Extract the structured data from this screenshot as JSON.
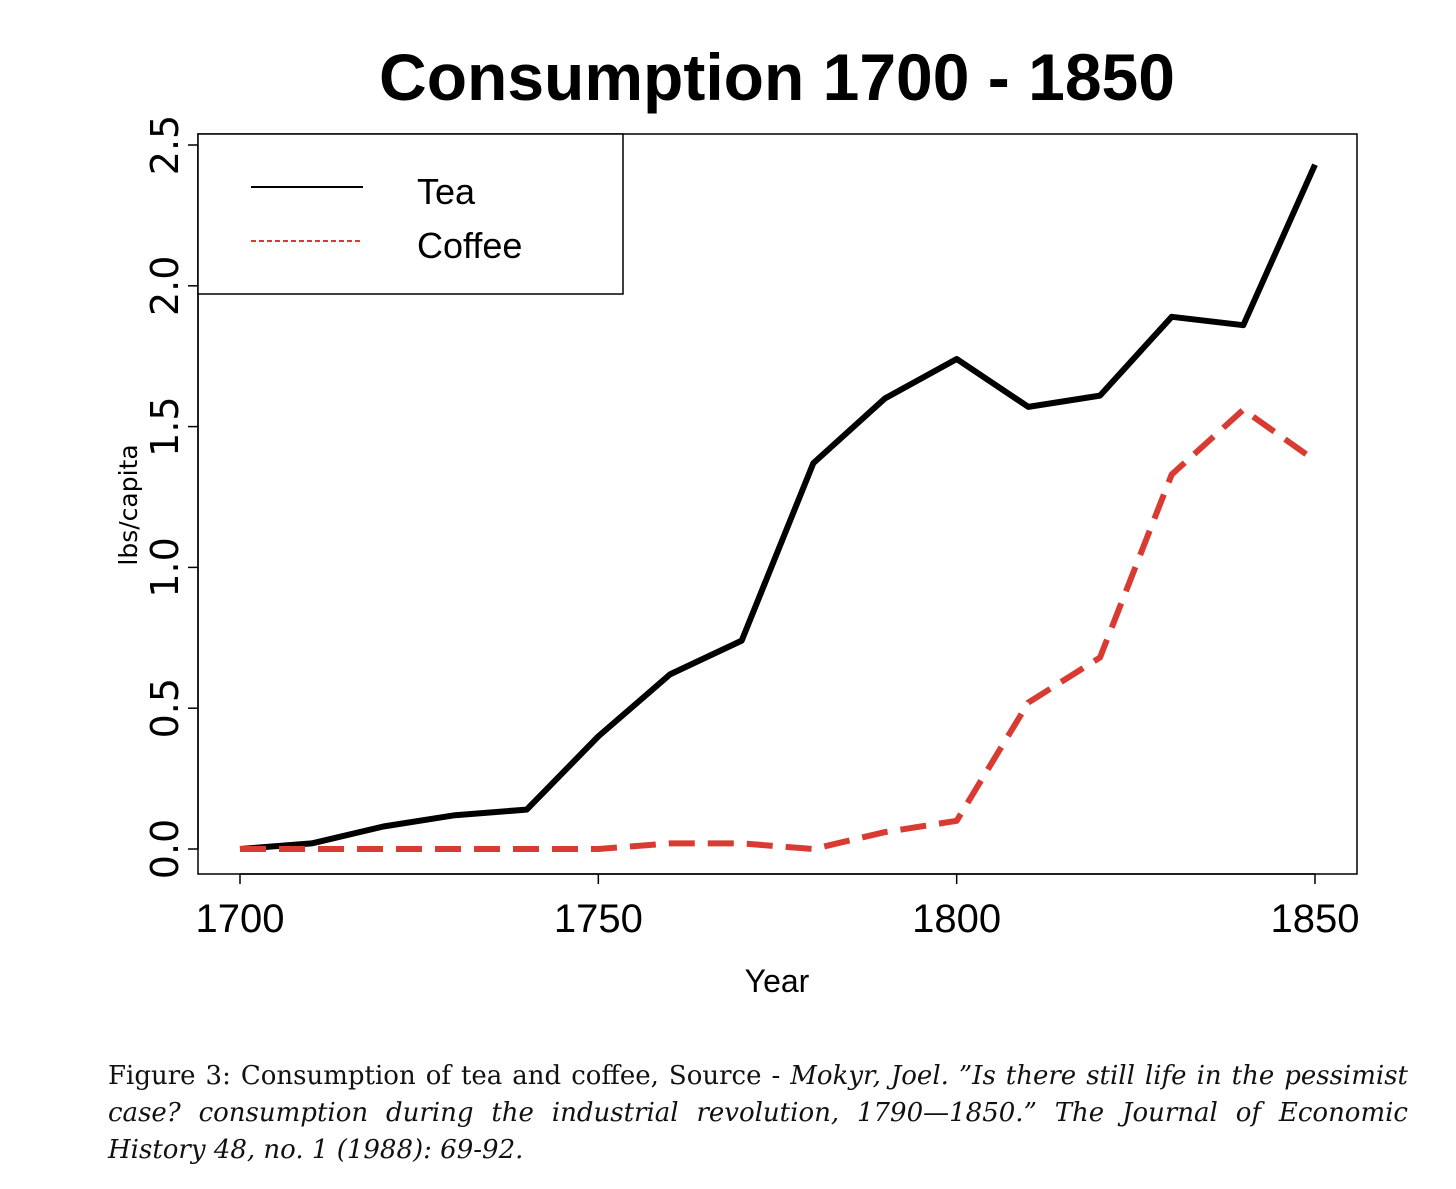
{
  "chart_data": {
    "type": "line",
    "title": "Consumption 1700 - 1850",
    "xlabel": "Year",
    "ylabel": "lbs/capita",
    "xlim": [
      1700,
      1850
    ],
    "ylim": [
      0,
      2.5
    ],
    "x_ticks": [
      "1700",
      "1750",
      "1800",
      "1850"
    ],
    "y_ticks": [
      "0.0",
      "0.5",
      "1.0",
      "1.5",
      "2.0",
      "2.5"
    ],
    "legend_position": "top-left",
    "x": [
      1700,
      1710,
      1720,
      1730,
      1740,
      1750,
      1760,
      1770,
      1780,
      1790,
      1800,
      1810,
      1820,
      1830,
      1840,
      1850
    ],
    "series": [
      {
        "name": "Tea",
        "color": "#000000",
        "style": "solid",
        "values": [
          0.0,
          0.02,
          0.08,
          0.12,
          0.14,
          0.4,
          0.62,
          0.74,
          1.37,
          1.6,
          1.74,
          1.57,
          1.61,
          1.89,
          1.86,
          2.43
        ]
      },
      {
        "name": "Coffee",
        "color": "#d93a32",
        "style": "dashed",
        "values": [
          0.0,
          0.0,
          0.0,
          0.0,
          0.0,
          0.0,
          0.02,
          0.02,
          0.0,
          0.06,
          0.1,
          0.52,
          0.68,
          1.33,
          1.56,
          1.38
        ]
      }
    ]
  },
  "caption": {
    "prefix": "Figure 3: Consumption of tea and coffee, Source - ",
    "citation": "Mokyr, Joel. ”Is there still life in the pessimist case? consumption during the industrial revolution, 1790—1850.” The Journal of Economic History 48, no. 1 (1988): 69-92."
  }
}
